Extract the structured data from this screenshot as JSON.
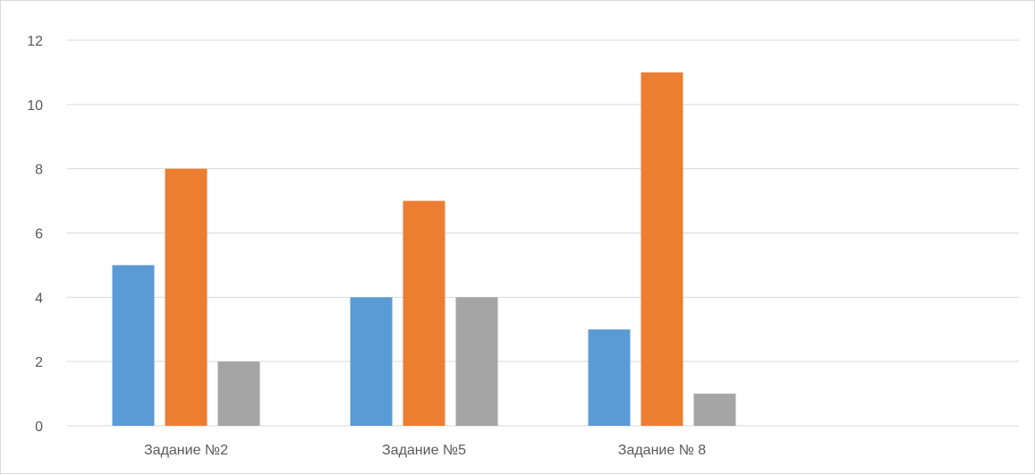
{
  "chart_data": {
    "type": "bar",
    "title": "",
    "xlabel": "",
    "ylabel": "",
    "categories": [
      "Задание №2",
      "Задание №5",
      "Задание № 8",
      ""
    ],
    "series": [
      {
        "color": "#5b9bd5",
        "values": [
          5,
          4,
          3,
          null
        ]
      },
      {
        "color": "#ed7d31",
        "values": [
          8,
          7,
          11,
          null
        ]
      },
      {
        "color": "#a5a5a5",
        "values": [
          2,
          4,
          1,
          null
        ]
      }
    ],
    "ylim": [
      0,
      12
    ],
    "yticks": [
      0,
      2,
      4,
      6,
      8,
      10,
      12
    ],
    "grid": true,
    "legend": "none"
  }
}
